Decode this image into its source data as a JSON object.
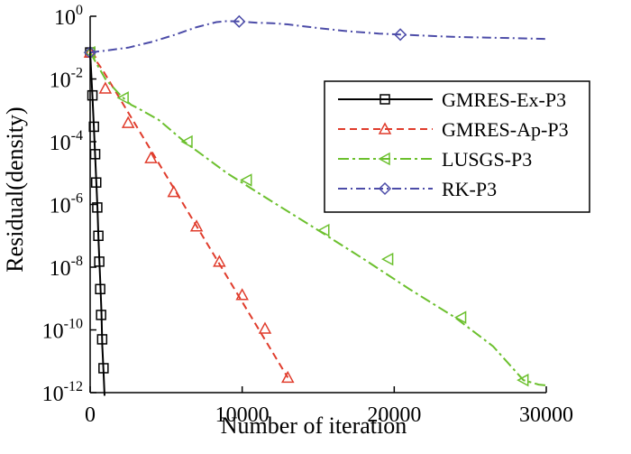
{
  "chart_data": {
    "type": "line",
    "xlabel": "Number of iteration",
    "ylabel": "Residual(density)",
    "xlim": [
      0,
      30000
    ],
    "ylim": [
      1e-12,
      1
    ],
    "yscale": "log",
    "grid": false,
    "legend_position": "top-right",
    "x_ticks": [
      "0",
      "10000",
      "20000",
      "30000"
    ],
    "y_ticks": [
      {
        "base": "10",
        "exp": "0"
      },
      {
        "base": "10",
        "exp": "-2"
      },
      {
        "base": "10",
        "exp": "-4"
      },
      {
        "base": "10",
        "exp": "-6"
      },
      {
        "base": "10",
        "exp": "-8"
      },
      {
        "base": "10",
        "exp": "-10"
      },
      {
        "base": "10",
        "exp": "-12"
      }
    ],
    "series": [
      {
        "name": "GMRES-Ex-P3",
        "color": "#000000",
        "dash": "solid",
        "marker": "square",
        "points": [
          [
            0,
            0.07
          ],
          [
            150,
            0.003
          ],
          [
            260,
            0.0002
          ],
          [
            380,
            1e-05
          ],
          [
            480,
            8e-07
          ],
          [
            560,
            6e-08
          ],
          [
            650,
            5e-09
          ],
          [
            740,
            4e-10
          ],
          [
            800,
            3e-11
          ],
          [
            880,
            5e-12
          ],
          [
            950,
            8e-13
          ]
        ],
        "markers": [
          [
            0,
            0.07
          ],
          [
            150,
            0.003
          ],
          [
            250,
            0.0003
          ],
          [
            330,
            4e-05
          ],
          [
            400,
            5e-06
          ],
          [
            470,
            8e-07
          ],
          [
            540,
            1e-07
          ],
          [
            600,
            1.5e-08
          ],
          [
            660,
            2e-09
          ],
          [
            720,
            3e-10
          ],
          [
            790,
            5e-11
          ],
          [
            880,
            6e-12
          ]
        ]
      },
      {
        "name": "GMRES-Ap-P3",
        "color": "#e03c2c",
        "dash": "8,5",
        "marker": "triangle",
        "points": [
          [
            0,
            0.07
          ],
          [
            800,
            0.02
          ],
          [
            13000,
            3e-12
          ]
        ],
        "markers": [
          [
            0,
            0.07
          ],
          [
            1000,
            0.005
          ],
          [
            2500,
            0.0004
          ],
          [
            4000,
            3e-05
          ],
          [
            5500,
            2.5e-06
          ],
          [
            7000,
            2e-07
          ],
          [
            8500,
            1.5e-08
          ],
          [
            10000,
            1.3e-09
          ],
          [
            11500,
            1.1e-10
          ],
          [
            13000,
            3e-12
          ]
        ]
      },
      {
        "name": "LUSGS-P3",
        "color": "#6cc02e",
        "dash": "12,4,3,4",
        "marker": "triangle-left",
        "points": [
          [
            0,
            0.07
          ],
          [
            1000,
            0.01
          ],
          [
            2000,
            0.003
          ],
          [
            2400,
            0.002
          ],
          [
            2700,
            0.0015
          ],
          [
            3100,
            0.0012
          ],
          [
            4500,
            0.0005
          ],
          [
            6200,
            0.0001
          ],
          [
            9000,
            1e-05
          ],
          [
            12000,
            1.2e-06
          ],
          [
            15000,
            1.5e-07
          ],
          [
            18000,
            1.8e-08
          ],
          [
            21000,
            2e-09
          ],
          [
            24000,
            2.5e-10
          ],
          [
            26500,
            3e-11
          ],
          [
            28500,
            2.5e-12
          ],
          [
            29500,
            1.8e-12
          ],
          [
            30000,
            1.7e-12
          ]
        ],
        "markers": [
          [
            0,
            0.07
          ],
          [
            2200,
            0.0025
          ],
          [
            6400,
            0.0001
          ],
          [
            10300,
            6e-06
          ],
          [
            15400,
            1.5e-07
          ],
          [
            19600,
            1.8e-08
          ],
          [
            24400,
            2.5e-10
          ],
          [
            28500,
            2.5e-12
          ]
        ]
      },
      {
        "name": "RK-P3",
        "color": "#4c4ca8",
        "dash": "10,4,2,4",
        "marker": "diamond",
        "points": [
          [
            0,
            0.07
          ],
          [
            1000,
            0.08
          ],
          [
            2500,
            0.1
          ],
          [
            4000,
            0.15
          ],
          [
            5500,
            0.25
          ],
          [
            7000,
            0.45
          ],
          [
            8300,
            0.65
          ],
          [
            9000,
            0.7
          ],
          [
            9800,
            0.68
          ],
          [
            11000,
            0.62
          ],
          [
            12000,
            0.6
          ],
          [
            13000,
            0.55
          ],
          [
            15000,
            0.42
          ],
          [
            17000,
            0.33
          ],
          [
            19000,
            0.28
          ],
          [
            20400,
            0.26
          ],
          [
            22000,
            0.24
          ],
          [
            24000,
            0.22
          ],
          [
            26000,
            0.21
          ],
          [
            28000,
            0.2
          ],
          [
            30000,
            0.19
          ]
        ],
        "markers": [
          [
            0,
            0.07
          ],
          [
            9800,
            0.68
          ],
          [
            20400,
            0.26
          ]
        ]
      }
    ]
  }
}
